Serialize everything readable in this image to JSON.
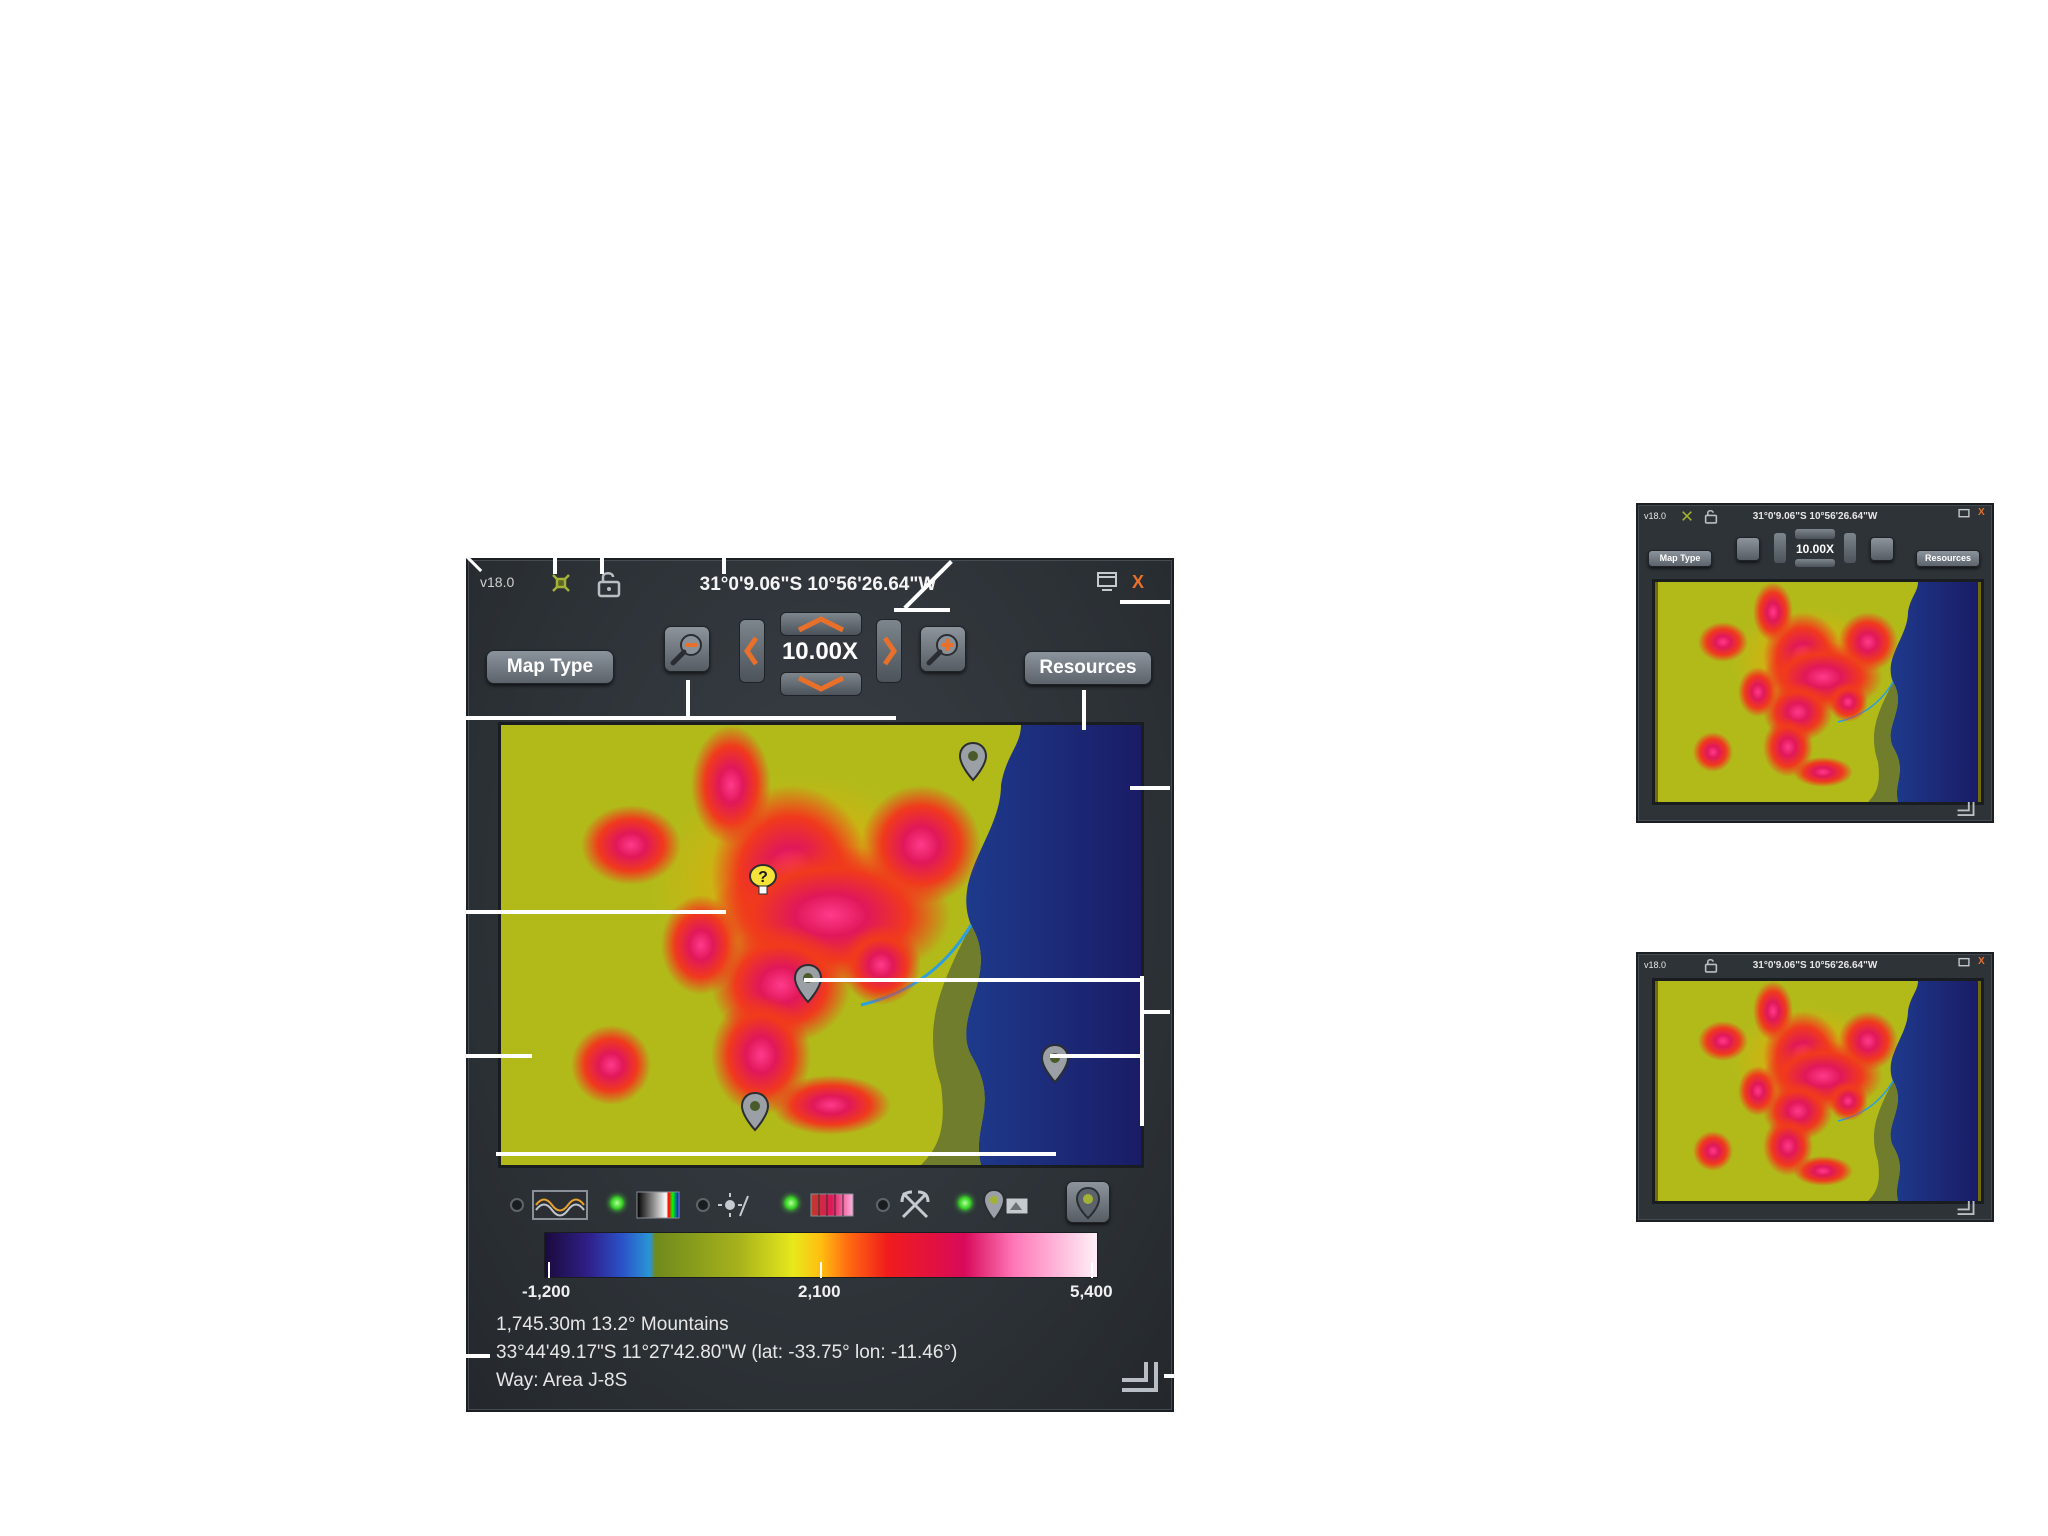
{
  "main": {
    "version": "v18.0",
    "coordinates": "31°0'9.06\"S 10°56'26.64\"W",
    "close_label": "X",
    "map_type_label": "Map Type",
    "resources_label": "Resources",
    "zoom_value": "10.00X",
    "legend": {
      "min_label": "-1,200",
      "mid_label": "2,100",
      "max_label": "5,400"
    },
    "info": {
      "line1": "1,745.30m 13.2° Mountains",
      "line2": "33°44'49.17\"S 11°27'42.80\"W (lat: -33.75° lon: -11.46°)",
      "line3": "Way: Area J-8S"
    },
    "overlay_toggles": [
      {
        "name": "contour",
        "on": false
      },
      {
        "name": "grayscale",
        "on": true
      },
      {
        "name": "day-night",
        "on": false
      },
      {
        "name": "color-scale",
        "on": true
      },
      {
        "name": "resources",
        "on": false
      },
      {
        "name": "waypoints",
        "on": true
      }
    ]
  },
  "mini_top": {
    "version": "v18.0",
    "coordinates": "31°0'9.06\"S 10°56'26.64\"W",
    "close_label": "X",
    "map_type_label": "Map Type",
    "resources_label": "Resources",
    "zoom_value": "10.00X"
  },
  "mini_bottom": {
    "version": "v18.0",
    "coordinates": "31°0'9.06\"S 10°56'26.64\"W",
    "close_label": "X"
  },
  "colors": {
    "accent_orange": "#e8702a",
    "panel_bg": "#2e3338",
    "callout": "#ffffff"
  }
}
